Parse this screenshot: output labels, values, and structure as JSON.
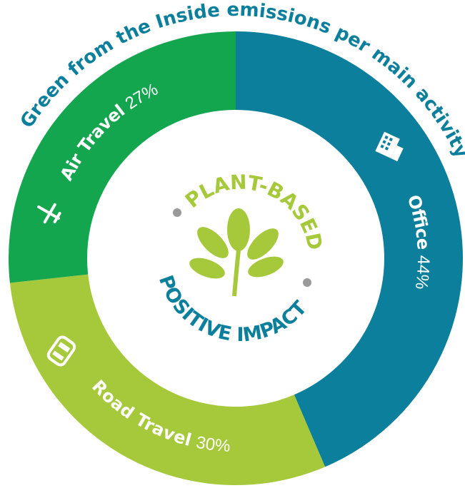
{
  "chart_data": {
    "type": "donut",
    "title": "Green from the Inside emissions per main activity",
    "categories": [
      "Office",
      "Road Travel",
      "Air Travel"
    ],
    "values": [
      44,
      30,
      27
    ],
    "value_labels": [
      "44%",
      "30%",
      "27%"
    ],
    "colors": [
      "#0b7f9b",
      "#a5c93a",
      "#13a64f"
    ],
    "annotations": [
      "PLANT-BASED",
      "POSITIVE IMPACT"
    ]
  }
}
